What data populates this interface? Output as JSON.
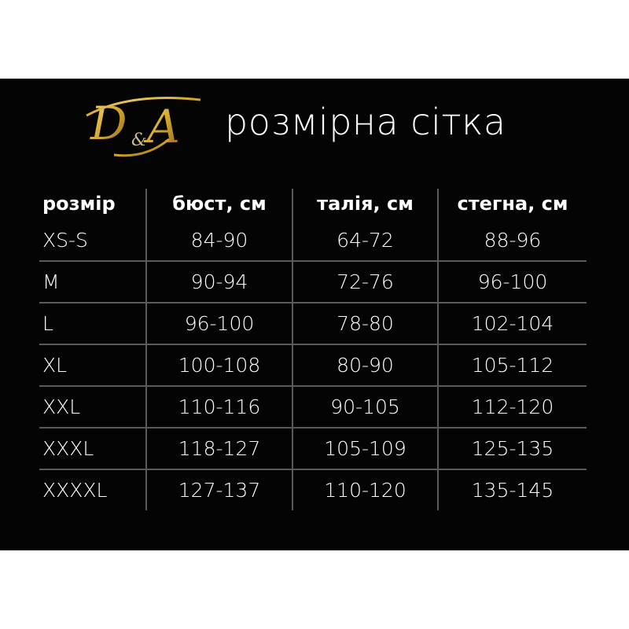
{
  "logo": {
    "text": "D&A",
    "color": "#d4a72c"
  },
  "title": "розмірна сітка",
  "table": {
    "headers": [
      "розмір",
      "бюст, см",
      "талія, см",
      "стегна, см"
    ],
    "rows": [
      [
        "XS-S",
        "84-90",
        "64-72",
        "88-96"
      ],
      [
        "M",
        "90-94",
        "72-76",
        "96-100"
      ],
      [
        "L",
        "96-100",
        "78-80",
        "102-104"
      ],
      [
        "XL",
        "100-108",
        "80-90",
        "105-112"
      ],
      [
        "XXL",
        "110-116",
        "90-105",
        "112-120"
      ],
      [
        "XXXL",
        "118-127",
        "105-109",
        "125-135"
      ],
      [
        "XXXXL",
        "127-137",
        "110-120",
        "135-145"
      ]
    ]
  }
}
